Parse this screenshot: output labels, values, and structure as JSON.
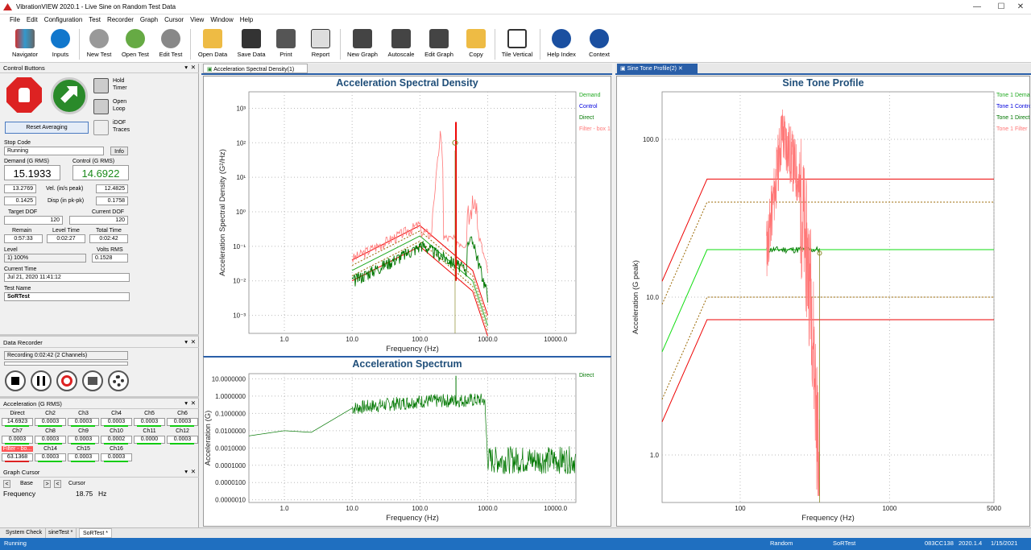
{
  "app": {
    "title": "VibrationVIEW 2020.1 - Live Sine on Random Test Data"
  },
  "menu": [
    "File",
    "Edit",
    "Configuration",
    "Test",
    "Recorder",
    "Graph",
    "Cursor",
    "View",
    "Window",
    "Help"
  ],
  "toolbar": [
    "Navigator",
    "Inputs",
    "New Test",
    "Open Test",
    "Edit Test",
    "Open Data",
    "Save Data",
    "Print",
    "Report",
    "New Graph",
    "Autoscale",
    "Edit Graph",
    "Copy",
    "Tile Vertical",
    "Help Index",
    "Context"
  ],
  "control": {
    "header": "Control Buttons",
    "hold": [
      "Hold",
      "Timer"
    ],
    "open": [
      "Open",
      "Loop"
    ],
    "idof": [
      "iDOF",
      "Traces"
    ],
    "reset": "Reset Averaging",
    "stop_code_label": "Stop Code",
    "stop_code": "Running",
    "info": "Info",
    "demand_label": "Demand (G RMS)",
    "demand": "15.1933",
    "control_label": "Control (G RMS)",
    "control": "14.6922",
    "vel_left": "13.2769",
    "vel_label": "Vel. (in/s peak)",
    "vel_right": "12.4825",
    "disp_left": "0.1425",
    "disp_label": "Disp (in pk-pk)",
    "disp_right": "0.1758",
    "target_dof_label": "Target DOF",
    "target_dof": "120",
    "current_dof_label": "Current DOF",
    "current_dof": "120",
    "remain_label": "Remain",
    "remain": "0:57:33",
    "level_time_label": "Level Time",
    "level_time": "0:02:27",
    "total_time_label": "Total Time",
    "total_time": "0:02:42",
    "level_label": "Level",
    "level": "1) 100%",
    "volts_label": "Volts RMS",
    "volts": "0.1528",
    "current_time_label": "Current Time",
    "current_time": "Jul 21, 2020 11:41:12",
    "test_name_label": "Test Name",
    "test_name": "SoRTest"
  },
  "recorder": {
    "header": "Data Recorder",
    "status": "Recording 0:02:42 (2 Channels)"
  },
  "accel": {
    "header": "Acceleration (G RMS)",
    "channels": [
      {
        "n": "Direct",
        "v": "14.6923"
      },
      {
        "n": "Ch2",
        "v": "0.0003"
      },
      {
        "n": "Ch3",
        "v": "0.0003"
      },
      {
        "n": "Ch4",
        "v": "0.0003"
      },
      {
        "n": "Ch5",
        "v": "0.0003"
      },
      {
        "n": "Ch6",
        "v": "0.0003"
      },
      {
        "n": "Ch7",
        "v": "0.0003"
      },
      {
        "n": "Ch8",
        "v": "0.0003"
      },
      {
        "n": "Ch9",
        "v": "0.0003"
      },
      {
        "n": "Ch10",
        "v": "0.0002"
      },
      {
        "n": "Ch11",
        "v": "0.0000"
      },
      {
        "n": "Ch12",
        "v": "0.0003"
      },
      {
        "n": "Filter - bo...",
        "v": "63.1368"
      },
      {
        "n": "Ch14",
        "v": "0.0003"
      },
      {
        "n": "Ch15",
        "v": "0.0003"
      },
      {
        "n": "Ch16",
        "v": "0.0003"
      }
    ]
  },
  "cursor": {
    "header": "Graph Cursor",
    "base": "Base",
    "cursor": "Cursor",
    "freq_label": "Frequency",
    "freq": "18.75",
    "unit": "Hz"
  },
  "tabs": {
    "left": "Acceleration Spectral Density(1)",
    "right": "Sine Tone Profile(2)"
  },
  "bottom_tabs": [
    "System Check",
    "sineTest *",
    "SoRTest *"
  ],
  "status": {
    "left": "Running",
    "mode": "Random",
    "test": "SoRTest",
    "id": "083CC138",
    "ver": "2020.1.4",
    "date": "1/15/2021"
  },
  "colors": {
    "demand": "#22aa22",
    "control": "#0000dd",
    "direct": "#007700",
    "filter": "#ff7777",
    "limit": "#ee0000",
    "warn": "#996600"
  },
  "chart_data": [
    {
      "type": "line",
      "title": "Acceleration Spectral Density",
      "xlabel": "Frequency (Hz)",
      "ylabel": "Acceleration Spectral Density (G²/Hz)",
      "x_scale": "log",
      "y_scale": "log",
      "xlim": [
        0.3,
        20000
      ],
      "ylim": [
        0.0003,
        3000
      ],
      "x_ticks": [
        "1.0",
        "10.0",
        "100.0",
        "1000.0",
        "10000.0"
      ],
      "y_ticks": [
        "10³",
        "10²",
        "10¹",
        "10⁰",
        "10⁻¹",
        "10⁻²",
        "10⁻³"
      ],
      "legend": [
        "Demand",
        "Control",
        "Direct",
        "Filter - box 1"
      ],
      "series": [
        {
          "name": "Demand",
          "x": [
            10,
            100,
            600,
            1000
          ],
          "y": [
            0.02,
            0.2,
            0.01,
            0.0005
          ]
        },
        {
          "name": "Direct",
          "x": [
            10,
            100,
            600,
            1000
          ],
          "y": [
            0.01,
            0.12,
            0.006,
            0.001
          ]
        },
        {
          "name": "Filter - box 1",
          "x": [
            10,
            100,
            190,
            200,
            600,
            1000
          ],
          "y": [
            0.04,
            0.25,
            5,
            1000,
            50,
            0.001
          ]
        }
      ]
    },
    {
      "type": "line",
      "title": "Acceleration Spectrum",
      "xlabel": "Frequency (Hz)",
      "ylabel": "Acceleration (G)",
      "x_scale": "log",
      "y_scale": "log",
      "xlim": [
        0.3,
        20000
      ],
      "x_ticks": [
        "1.0",
        "10.0",
        "100.0",
        "1000.0",
        "10000.0"
      ],
      "y_ticks": [
        "10.0000000",
        "1.0000000",
        "0.1000000",
        "0.0100000",
        "0.0010000",
        "0.0001000",
        "0.0000100",
        "0.0000010"
      ],
      "legend": [
        "Direct"
      ],
      "series": [
        {
          "name": "Direct",
          "x": [
            0.3,
            1,
            2.5,
            10,
            100,
            900,
            1000,
            10000
          ],
          "y": [
            0.005,
            0.01,
            0.008,
            0.2,
            0.5,
            0.6,
            0.0002,
            0.0002
          ]
        }
      ]
    },
    {
      "type": "line",
      "title": "Sine Tone Profile",
      "xlabel": "Frequency (Hz)",
      "ylabel": "Acceleration (G peak)",
      "x_scale": "log",
      "y_scale": "log",
      "xlim": [
        30,
        5000
      ],
      "ylim": [
        0.5,
        200
      ],
      "x_ticks": [
        "100",
        "1000",
        "5000"
      ],
      "y_ticks": [
        "100.0",
        "10.0",
        "1.0"
      ],
      "legend": [
        "Tone 1 Demand",
        "Tone 1 Control",
        "Tone 1 Direct",
        "Tone 1 Filter"
      ],
      "series": [
        {
          "name": "Tone 1 Demand",
          "x": [
            30,
            60,
            5000
          ],
          "y": [
            4.5,
            20,
            20
          ]
        },
        {
          "name": "Tone 1 Direct",
          "x": [
            150,
            340
          ],
          "y": [
            20,
            20
          ]
        },
        {
          "name": "Tone 1 Filter",
          "x": [
            150,
            190,
            240,
            300,
            340
          ],
          "y": [
            20,
            110,
            60,
            10,
            0.6
          ]
        }
      ]
    }
  ]
}
